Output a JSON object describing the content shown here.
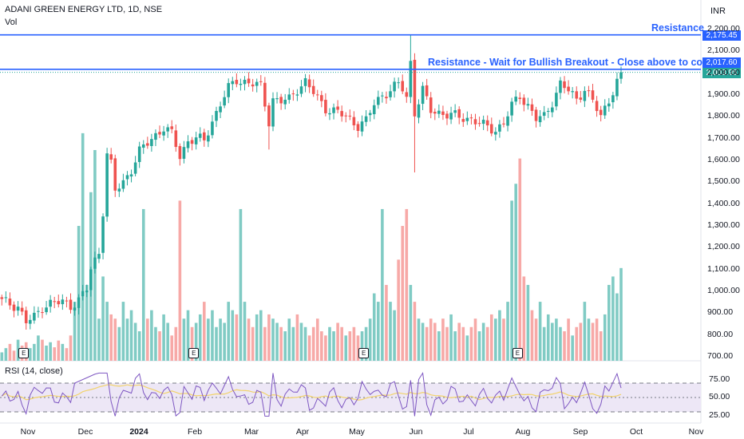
{
  "header": {
    "symbol": "ADANI GREEN ENERGY LTD, 1D, NSE",
    "volume_label": "Vol",
    "currency": "INR",
    "rsi_label": "RSI (14, close)"
  },
  "annotations": {
    "resistance_top": "Resistance",
    "resistance_main": "Resistance - Wait for Bullish Breakout - Close above to confirm"
  },
  "price_tags": {
    "resistance_top": "2,175.45",
    "resistance_main": "2,017.60",
    "last_price": "2,003.95"
  },
  "colors": {
    "up": "#26a69a",
    "down": "#ef5350",
    "line": "#2962ff",
    "last_price_bg": "#26a69a",
    "rsi_line": "#7e57c2",
    "rsi_ma": "#f2d36b",
    "rsi_band": "#ede7f6"
  },
  "earnings_marker": "E",
  "chart_data": {
    "type": "candlestick",
    "title": "ADANI GREEN ENERGY LTD, 1D, NSE",
    "y_ticks": [
      "700.00",
      "800.00",
      "900.00",
      "1,000.00",
      "1,100.00",
      "1,200.00",
      "1,300.00",
      "1,400.00",
      "1,500.00",
      "1,600.00",
      "1,700.00",
      "1,800.00",
      "1,900.00",
      "2,000.00",
      "2,100.00",
      "2,200.00"
    ],
    "x_ticks": [
      "Nov",
      "Dec",
      "2024",
      "Feb",
      "Mar",
      "Apr",
      "May",
      "Jun",
      "Jul",
      "Aug",
      "Sep",
      "Oct",
      "Nov"
    ],
    "ylim": [
      680,
      2230
    ],
    "rsi_ticks": [
      "75.00",
      "50.00",
      "25.00"
    ],
    "rsi_levels": [
      70,
      50,
      30
    ],
    "horizontal_lines": [
      {
        "label": "Resistance",
        "value": 2175.45
      },
      {
        "label": "Resistance - Wait for Bullish Breakout - Close above to confirm",
        "value": 2017.6
      }
    ],
    "last_close": 2003.95,
    "price_path": [
      [
        0,
        955
      ],
      [
        4,
        930
      ],
      [
        6,
        860
      ],
      [
        8,
        880
      ],
      [
        10,
        930
      ],
      [
        12,
        945
      ],
      [
        15,
        950
      ],
      [
        17,
        935
      ],
      [
        19,
        960
      ],
      [
        21,
        1010
      ],
      [
        22,
        1100
      ],
      [
        24,
        1180
      ],
      [
        25,
        1370
      ],
      [
        26,
        1630
      ],
      [
        27,
        1580
      ],
      [
        28,
        1460
      ],
      [
        30,
        1500
      ],
      [
        32,
        1560
      ],
      [
        34,
        1640
      ],
      [
        37,
        1700
      ],
      [
        40,
        1750
      ],
      [
        42,
        1720
      ],
      [
        44,
        1620
      ],
      [
        46,
        1690
      ],
      [
        48,
        1700
      ],
      [
        50,
        1690
      ],
      [
        52,
        1780
      ],
      [
        54,
        1860
      ],
      [
        56,
        1930
      ],
      [
        58,
        1970
      ],
      [
        60,
        1960
      ],
      [
        62,
        1950
      ],
      [
        64,
        1940
      ],
      [
        66,
        1780
      ],
      [
        67,
        1880
      ],
      [
        69,
        1870
      ],
      [
        71,
        1880
      ],
      [
        73,
        1930
      ],
      [
        75,
        1960
      ],
      [
        77,
        1910
      ],
      [
        80,
        1840
      ],
      [
        83,
        1820
      ],
      [
        86,
        1790
      ],
      [
        88,
        1760
      ],
      [
        90,
        1780
      ],
      [
        92,
        1860
      ],
      [
        94,
        1900
      ],
      [
        96,
        1920
      ],
      [
        98,
        1950
      ],
      [
        99,
        1930
      ],
      [
        100,
        1890
      ],
      [
        101,
        2050
      ],
      [
        102,
        1820
      ],
      [
        104,
        1920
      ],
      [
        106,
        1830
      ],
      [
        108,
        1820
      ],
      [
        110,
        1810
      ],
      [
        113,
        1800
      ],
      [
        116,
        1790
      ],
      [
        119,
        1760
      ],
      [
        122,
        1740
      ],
      [
        124,
        1770
      ],
      [
        126,
        1850
      ],
      [
        128,
        1900
      ],
      [
        130,
        1850
      ],
      [
        132,
        1790
      ],
      [
        134,
        1800
      ],
      [
        136,
        1870
      ],
      [
        138,
        1950
      ],
      [
        140,
        1920
      ],
      [
        142,
        1880
      ],
      [
        144,
        1930
      ],
      [
        146,
        1870
      ],
      [
        148,
        1800
      ],
      [
        150,
        1880
      ],
      [
        152,
        1960
      ],
      [
        153,
        2005
      ]
    ],
    "volume": [
      [
        0,
        700
      ],
      [
        1,
        705
      ],
      [
        2,
        710
      ],
      [
        3,
        702
      ],
      [
        4,
        715
      ],
      [
        5,
        708
      ],
      [
        6,
        712
      ],
      [
        7,
        705
      ],
      [
        8,
        710
      ],
      [
        9,
        720
      ],
      [
        10,
        715
      ],
      [
        11,
        708
      ],
      [
        12,
        712
      ],
      [
        13,
        706
      ],
      [
        14,
        714
      ],
      [
        15,
        710
      ],
      [
        16,
        705
      ],
      [
        17,
        720
      ],
      [
        18,
        760
      ],
      [
        19,
        850
      ],
      [
        20,
        960
      ],
      [
        21,
        780
      ],
      [
        22,
        890
      ],
      [
        23,
        940
      ],
      [
        24,
        740
      ],
      [
        25,
        790
      ],
      [
        26,
        760
      ],
      [
        27,
        745
      ],
      [
        28,
        740
      ],
      [
        29,
        730
      ],
      [
        30,
        760
      ],
      [
        31,
        740
      ],
      [
        32,
        750
      ],
      [
        33,
        735
      ],
      [
        34,
        725
      ],
      [
        35,
        870
      ],
      [
        36,
        740
      ],
      [
        37,
        750
      ],
      [
        38,
        730
      ],
      [
        39,
        725
      ],
      [
        40,
        745
      ],
      [
        41,
        735
      ],
      [
        42,
        720
      ],
      [
        43,
        730
      ],
      [
        44,
        880
      ],
      [
        45,
        740
      ],
      [
        46,
        750
      ],
      [
        47,
        730
      ],
      [
        48,
        735
      ],
      [
        49,
        745
      ],
      [
        50,
        760
      ],
      [
        51,
        740
      ],
      [
        52,
        750
      ],
      [
        53,
        730
      ],
      [
        54,
        740
      ],
      [
        55,
        735
      ],
      [
        56,
        760
      ],
      [
        57,
        750
      ],
      [
        58,
        745
      ],
      [
        59,
        870
      ],
      [
        60,
        760
      ],
      [
        61,
        740
      ],
      [
        62,
        730
      ],
      [
        63,
        745
      ],
      [
        64,
        750
      ],
      [
        65,
        730
      ],
      [
        66,
        745
      ],
      [
        67,
        740
      ],
      [
        68,
        735
      ],
      [
        69,
        730
      ],
      [
        70,
        725
      ],
      [
        71,
        740
      ],
      [
        72,
        730
      ],
      [
        73,
        745
      ],
      [
        74,
        735
      ],
      [
        75,
        730
      ],
      [
        76,
        720
      ],
      [
        77,
        730
      ],
      [
        78,
        740
      ],
      [
        79,
        725
      ],
      [
        80,
        720
      ],
      [
        81,
        730
      ],
      [
        82,
        725
      ],
      [
        83,
        735
      ],
      [
        84,
        730
      ],
      [
        85,
        720
      ],
      [
        86,
        725
      ],
      [
        87,
        730
      ],
      [
        88,
        720
      ],
      [
        89,
        725
      ],
      [
        90,
        730
      ],
      [
        91,
        740
      ],
      [
        92,
        770
      ],
      [
        93,
        760
      ],
      [
        94,
        870
      ],
      [
        95,
        780
      ],
      [
        96,
        760
      ],
      [
        97,
        750
      ],
      [
        98,
        810
      ],
      [
        99,
        850
      ],
      [
        100,
        870
      ],
      [
        101,
        780
      ],
      [
        102,
        760
      ],
      [
        103,
        740
      ],
      [
        104,
        735
      ],
      [
        105,
        730
      ],
      [
        106,
        740
      ],
      [
        107,
        735
      ],
      [
        108,
        725
      ],
      [
        109,
        740
      ],
      [
        110,
        730
      ],
      [
        111,
        745
      ],
      [
        112,
        725
      ],
      [
        113,
        735
      ],
      [
        114,
        730
      ],
      [
        115,
        720
      ],
      [
        116,
        730
      ],
      [
        117,
        740
      ],
      [
        118,
        725
      ],
      [
        119,
        735
      ],
      [
        120,
        730
      ],
      [
        121,
        745
      ],
      [
        122,
        740
      ],
      [
        123,
        750
      ],
      [
        124,
        740
      ],
      [
        125,
        760
      ],
      [
        126,
        880
      ],
      [
        127,
        900
      ],
      [
        128,
        930
      ],
      [
        129,
        790
      ],
      [
        130,
        780
      ],
      [
        131,
        750
      ],
      [
        132,
        740
      ],
      [
        133,
        760
      ],
      [
        134,
        730
      ],
      [
        135,
        745
      ],
      [
        136,
        735
      ],
      [
        137,
        740
      ],
      [
        138,
        730
      ],
      [
        139,
        725
      ],
      [
        140,
        740
      ],
      [
        141,
        720
      ],
      [
        142,
        730
      ],
      [
        143,
        735
      ],
      [
        144,
        760
      ],
      [
        145,
        740
      ],
      [
        146,
        735
      ],
      [
        147,
        740
      ],
      [
        148,
        725
      ],
      [
        149,
        745
      ],
      [
        150,
        780
      ],
      [
        151,
        790
      ],
      [
        152,
        770
      ],
      [
        153,
        800
      ]
    ],
    "earnings_bars": [
      5,
      47,
      89,
      127
    ]
  }
}
